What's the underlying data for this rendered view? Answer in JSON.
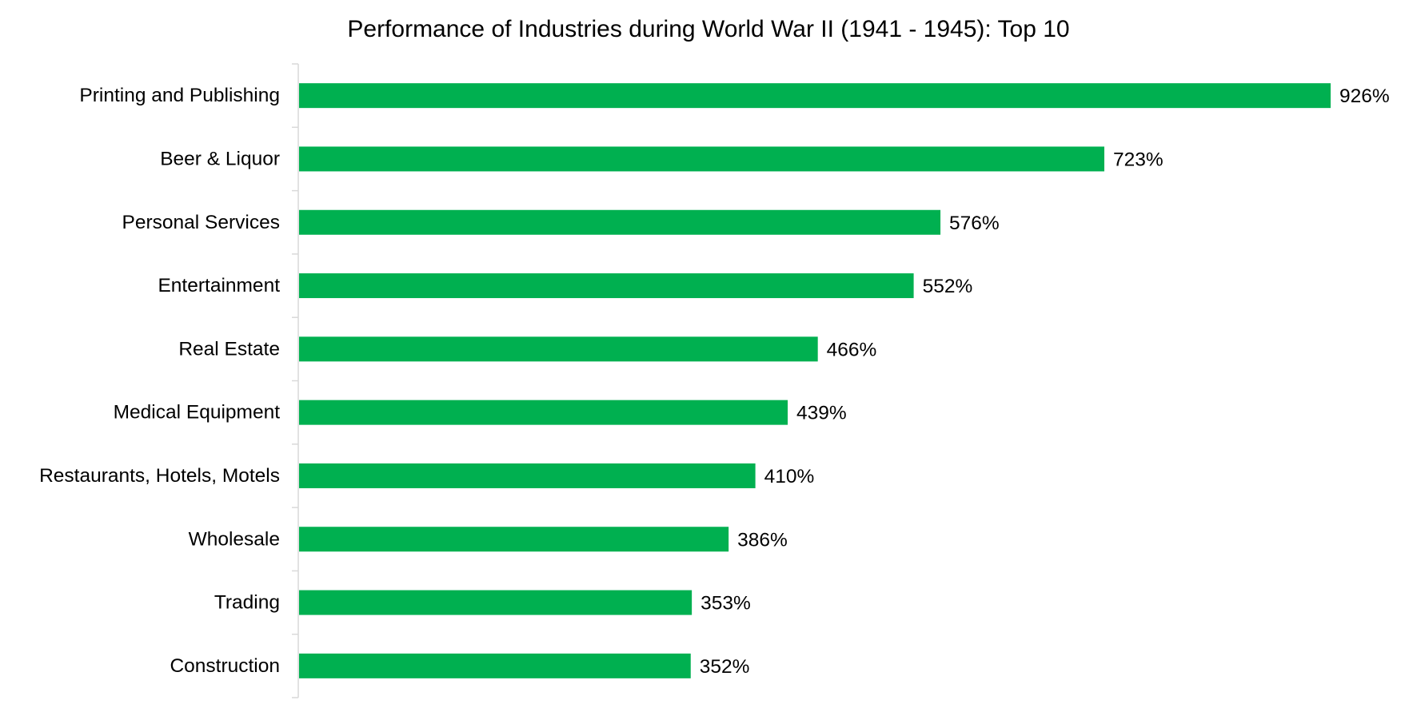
{
  "chart_data": {
    "type": "bar",
    "orientation": "horizontal",
    "title": "Performance of Industries during World War II (1941 - 1945): Top 10",
    "categories": [
      "Printing and Publishing",
      "Beer & Liquor",
      "Personal Services",
      "Entertainment",
      "Real Estate",
      "Medical Equipment",
      "Restaurants, Hotels, Motels",
      "Wholesale",
      "Trading",
      "Construction"
    ],
    "values": [
      926,
      723,
      576,
      552,
      466,
      439,
      410,
      386,
      353,
      352
    ],
    "value_labels": [
      "926%",
      "723%",
      "576%",
      "552%",
      "466%",
      "439%",
      "410%",
      "386%",
      "353%",
      "352%"
    ],
    "value_unit": "%",
    "xlim": [
      0,
      926
    ],
    "grid": false,
    "legend": "none",
    "bar_color": "#00B050",
    "axis_color": "#D9D9D9"
  }
}
